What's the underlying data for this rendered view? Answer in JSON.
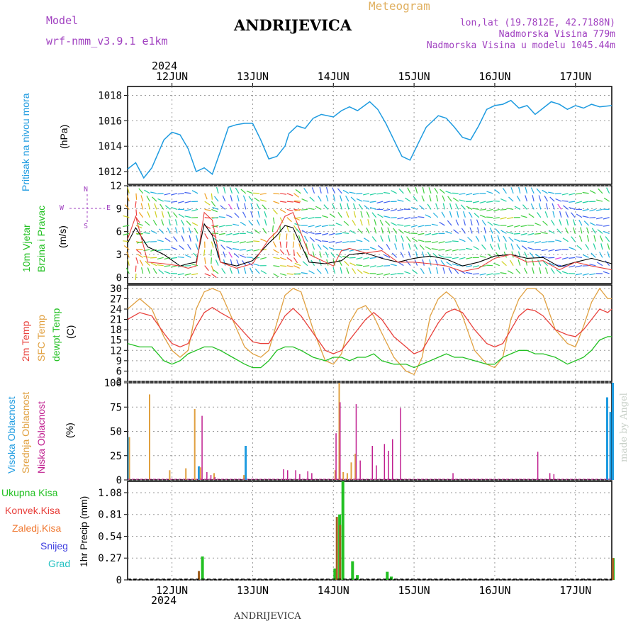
{
  "header": {
    "model_label": "Model",
    "model_name": "wrf-nmm_v3.9.1 e1km",
    "station": "ANDRIJEVICA",
    "meteogram": "Meteogram",
    "lonlat": "lon,lat (19.7812E, 42.7188N)",
    "elevation": "Nadmorska Visina 779m",
    "model_elevation": "Nadmorska Visina u modelu 1045.44m",
    "footer_station": "ANDRIJEVICA",
    "credit": "made by Angel",
    "year": "2024"
  },
  "colors": {
    "pressure": "#1e9be0",
    "temp2m": "#e8413c",
    "sfc": "#e0a040",
    "dewpt": "#22c022",
    "high": "#1e9be0",
    "mid": "#e0a040",
    "low": "#c02090",
    "total": "#22c022",
    "convective": "#e8413c",
    "freezing": "#f07830",
    "snow": "#4040e0",
    "graupel": "#20c0c0",
    "wind_magenta": "#c040d0",
    "axis_purple": "#a040c0"
  },
  "axis": {
    "days": [
      "12JUN",
      "13JUN",
      "14JUN",
      "15JUN",
      "16JUN",
      "17JUN"
    ],
    "start_day_offset": -0.55,
    "end_day_offset": 5.45
  },
  "panels": {
    "pressure": {
      "title": "Pritisak na nivou mora",
      "unit": "(hPa)",
      "ticks": [
        1012,
        1014,
        1016,
        1018
      ]
    },
    "wind": {
      "title1": "10m Vjetar",
      "title2": "Brzina i Pravac",
      "unit": "(m/s)",
      "ticks": [
        0,
        3,
        6,
        9,
        12
      ],
      "compass": {
        "n": "N",
        "w": "W",
        "e": "E",
        "s": "S"
      }
    },
    "temp": {
      "t2m": "2m Temp",
      "sfc": "SFC Temp",
      "dew": "dewpt Temp",
      "unit": "(C)",
      "ticks": [
        3,
        6,
        9,
        12,
        15,
        18,
        21,
        24,
        27,
        30
      ]
    },
    "cloud": {
      "high": "Visoka Oblacnost",
      "mid": "Srednja Oblacnost",
      "low": "Niska Oblacnost",
      "unit": "(%)",
      "ticks": [
        0,
        25,
        50,
        75,
        100
      ]
    },
    "precip": {
      "labels": [
        "Ukupna Kisa",
        "Konvek.Kisa",
        "Zaledj.Kisa",
        "Snijeg",
        "Grad"
      ],
      "unit": "1hr Precip (mm)",
      "ticks": [
        0,
        0.27,
        0.54,
        0.81,
        1.08
      ]
    }
  },
  "chart_data": [
    {
      "type": "line",
      "title": "Pritisak na nivou mora",
      "ylabel": "(hPa)",
      "ylim": [
        1011,
        1018.7
      ],
      "x_days": [
        -0.55,
        -0.45,
        -0.35,
        -0.25,
        -0.1,
        0,
        0.1,
        0.2,
        0.3,
        0.4,
        0.5,
        0.6,
        0.7,
        0.8,
        0.9,
        1.0,
        1.1,
        1.2,
        1.3,
        1.4,
        1.45,
        1.55,
        1.65,
        1.75,
        1.85,
        2.0,
        2.1,
        2.2,
        2.3,
        2.45,
        2.55,
        2.65,
        2.75,
        2.85,
        2.95,
        3.05,
        3.15,
        3.2,
        3.3,
        3.4,
        3.5,
        3.6,
        3.7,
        3.8,
        3.9,
        4.0,
        4.1,
        4.2,
        4.3,
        4.4,
        4.5,
        4.6,
        4.7,
        4.8,
        4.9,
        5.0,
        5.1,
        5.2,
        5.3,
        5.45
      ],
      "series": [
        {
          "name": "Pritisak na nivou mora",
          "values": [
            1012.2,
            1012.7,
            1011.5,
            1012.3,
            1014.5,
            1015.1,
            1014.9,
            1013.8,
            1012.0,
            1012.3,
            1011.8,
            1013.6,
            1015.5,
            1015.7,
            1015.8,
            1015.8,
            1014.5,
            1013.0,
            1013.2,
            1014.0,
            1015.0,
            1015.6,
            1015.4,
            1016.2,
            1016.5,
            1016.3,
            1016.8,
            1017.1,
            1016.8,
            1017.5,
            1016.9,
            1015.8,
            1014.5,
            1013.2,
            1012.9,
            1014.2,
            1015.5,
            1015.8,
            1016.4,
            1016.2,
            1015.5,
            1014.7,
            1014.5,
            1015.6,
            1016.9,
            1017.2,
            1017.3,
            1017.6,
            1017.0,
            1017.2,
            1016.5,
            1017.0,
            1017.5,
            1017.3,
            1016.9,
            1017.2,
            1017.0,
            1017.3,
            1017.1,
            1017.2
          ]
        }
      ]
    },
    {
      "type": "line",
      "title": "10m Vjetar Brzina i Pravac",
      "ylabel": "(m/s)",
      "ylim": [
        -0.8,
        12
      ],
      "x_days": [
        -0.55,
        -0.45,
        -0.3,
        -0.1,
        0.1,
        0.2,
        0.3,
        0.4,
        0.5,
        0.6,
        0.8,
        1.0,
        1.2,
        1.3,
        1.4,
        1.5,
        1.7,
        1.9,
        2.0,
        2.1,
        2.2,
        2.4,
        2.6,
        2.8,
        3.0,
        3.2,
        3.4,
        3.6,
        3.8,
        4.0,
        4.2,
        4.4,
        4.6,
        4.8,
        5.0,
        5.2,
        5.45
      ],
      "series": [
        {
          "name": "speed",
          "values": [
            4.5,
            6.5,
            4.0,
            3.0,
            1.5,
            1.8,
            2.0,
            7.0,
            5.5,
            2.0,
            1.5,
            2.2,
            4.5,
            5.5,
            6.8,
            6.5,
            2.0,
            1.8,
            2.0,
            2.2,
            3.0,
            3.2,
            2.5,
            2.0,
            2.5,
            2.8,
            2.4,
            1.5,
            2.0,
            2.8,
            3.0,
            2.5,
            2.6,
            1.4,
            2.0,
            2.5,
            1.8
          ]
        },
        {
          "name": "gust",
          "values": [
            5.0,
            8.0,
            2.0,
            1.8,
            1.5,
            1.2,
            1.5,
            8.5,
            7.5,
            2.0,
            1.2,
            1.8,
            5.0,
            6.0,
            8.0,
            8.5,
            3.0,
            2.0,
            1.5,
            3.5,
            3.8,
            3.2,
            3.5,
            2.0,
            2.0,
            1.8,
            1.5,
            0.8,
            1.2,
            2.5,
            3.0,
            2.0,
            2.2,
            1.0,
            2.0,
            1.5,
            1.0
          ]
        }
      ]
    },
    {
      "type": "line",
      "title": "2m Temp / SFC Temp / dewpt Temp",
      "ylabel": "(C)",
      "ylim": [
        3,
        31
      ],
      "x_days": [
        -0.55,
        -0.4,
        -0.25,
        -0.1,
        0.0,
        0.1,
        0.2,
        0.3,
        0.4,
        0.5,
        0.6,
        0.75,
        0.9,
        1.0,
        1.1,
        1.2,
        1.3,
        1.4,
        1.5,
        1.6,
        1.75,
        1.9,
        2.0,
        2.1,
        2.2,
        2.3,
        2.4,
        2.5,
        2.6,
        2.75,
        2.9,
        3.0,
        3.1,
        3.2,
        3.3,
        3.4,
        3.5,
        3.6,
        3.75,
        3.9,
        4.0,
        4.1,
        4.2,
        4.3,
        4.4,
        4.5,
        4.6,
        4.75,
        4.9,
        5.0,
        5.1,
        5.2,
        5.3,
        5.4,
        5.45
      ],
      "series": [
        {
          "name": "2m Temp",
          "values": [
            21,
            23,
            22,
            17,
            14,
            13,
            14,
            19,
            23,
            24.5,
            23,
            21,
            17,
            14.5,
            14,
            14,
            18,
            22,
            24.2,
            22,
            17,
            12,
            11,
            12,
            15,
            18,
            21,
            23,
            21,
            16,
            13,
            11,
            12,
            16,
            20,
            23,
            24,
            23,
            18,
            14,
            13,
            14,
            18,
            22,
            24,
            23.5,
            22,
            18,
            16.5,
            16,
            18,
            21,
            24,
            23,
            24
          ]
        },
        {
          "name": "SFC Temp",
          "values": [
            24,
            27,
            24,
            16,
            12,
            10,
            12,
            24,
            29,
            30,
            29,
            21,
            13,
            11,
            10,
            12,
            20,
            28,
            30,
            29,
            18,
            9,
            8,
            11,
            20,
            24,
            25,
            22,
            17,
            10,
            6,
            5,
            10,
            22,
            27,
            29,
            27,
            22,
            12,
            8,
            7,
            10,
            21,
            27,
            30,
            30,
            28,
            18,
            14,
            13,
            19,
            26,
            30,
            27,
            27
          ]
        },
        {
          "name": "dewpt Temp",
          "values": [
            14,
            13,
            13,
            9,
            8,
            9,
            11,
            12,
            13,
            13,
            12,
            10,
            8,
            7,
            7,
            9,
            12,
            13,
            13,
            12,
            10,
            9,
            10,
            10,
            9,
            10,
            10,
            11,
            9,
            8,
            8,
            7,
            8,
            9,
            10,
            11,
            10,
            10,
            9,
            8,
            8,
            10,
            11,
            12,
            12,
            11,
            11,
            10,
            8,
            9,
            10,
            12,
            15,
            16,
            16
          ]
        }
      ]
    },
    {
      "type": "bar",
      "title": "Oblacnost",
      "ylabel": "(%)",
      "ylim": [
        0,
        100
      ],
      "series": [
        {
          "name": "Visoka Oblacnost",
          "x_days": [
            -0.55,
            0.32,
            0.9,
            5.38,
            5.42,
            5.45
          ],
          "values": [
            44,
            14,
            35,
            85,
            70,
            100
          ]
        },
        {
          "name": "Srednja Oblacnost",
          "x_days": [
            -0.55,
            -0.3,
            -0.05,
            0.15,
            0.26,
            0.33,
            0.5,
            0.87,
            2.0,
            2.05,
            2.1,
            2.15,
            2.2,
            2.25
          ],
          "values": [
            44,
            88,
            10,
            12,
            73,
            13,
            7,
            5,
            10,
            100,
            8,
            7,
            18,
            27
          ]
        },
        {
          "name": "Niska Oblacnost",
          "x_days": [
            0.34,
            0.4,
            0.45,
            0.5,
            1.35,
            1.4,
            1.5,
            1.55,
            1.65,
            1.7,
            2.0,
            2.05,
            2.25,
            2.3,
            2.45,
            2.5,
            2.6,
            2.65,
            2.7,
            2.8,
            3.45,
            4.5,
            4.65,
            4.7
          ],
          "values": [
            66,
            8,
            5,
            3,
            11,
            10,
            10,
            6,
            9,
            7,
            48,
            80,
            78,
            20,
            35,
            15,
            37,
            30,
            42,
            74,
            7,
            29,
            7,
            6
          ]
        }
      ]
    },
    {
      "type": "bar",
      "title": "1hr Precip",
      "ylabel": "1hr Precip (mm)",
      "ylim": [
        0,
        1.22
      ],
      "series": [
        {
          "name": "Ukupna Kisa",
          "x_days": [
            0.36,
            2.0,
            2.06,
            2.1,
            2.22,
            2.28,
            2.65,
            2.7,
            5.45
          ],
          "values": [
            0.29,
            0.14,
            0.81,
            1.22,
            0.23,
            0.06,
            0.1,
            0.04,
            0.27
          ]
        },
        {
          "name": "Konvek.Kisa",
          "x_days": [
            0.32,
            2.03,
            2.07,
            5.45
          ],
          "values": [
            0.11,
            0.78,
            0.68,
            0.27
          ]
        }
      ]
    }
  ]
}
